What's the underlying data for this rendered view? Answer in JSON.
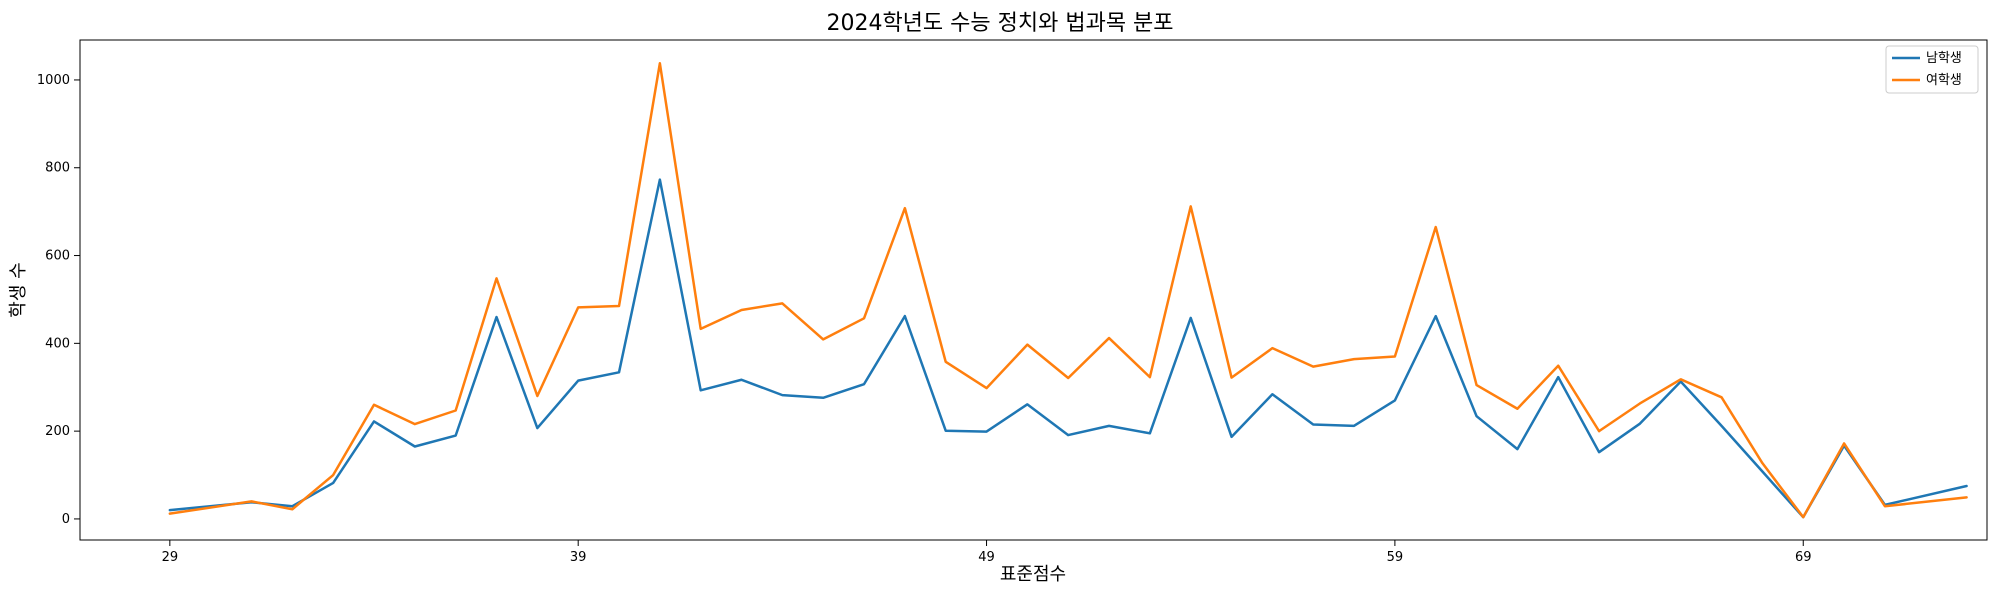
{
  "chart_data": {
    "type": "line",
    "title": "2024학년도 수능 정치와 법과목 분포",
    "xlabel": "표준점수",
    "ylabel": "학생 수",
    "xlim": [
      26.8,
      73.5
    ],
    "ylim": [
      -48,
      1091
    ],
    "x_ticks": [
      29,
      39,
      49,
      59,
      69
    ],
    "y_ticks": [
      0,
      200,
      400,
      600,
      800,
      1000
    ],
    "grid": false,
    "legend_position": "top-right",
    "series": [
      {
        "name": "남학생",
        "color": "#1f77b4",
        "points": [
          [
            29,
            20
          ],
          [
            31,
            38
          ],
          [
            32,
            29
          ],
          [
            33,
            82
          ],
          [
            34,
            222
          ],
          [
            35,
            165
          ],
          [
            36,
            190
          ],
          [
            37,
            460
          ],
          [
            38,
            207
          ],
          [
            39,
            315
          ],
          [
            40,
            334
          ],
          [
            41,
            773
          ],
          [
            42,
            293
          ],
          [
            43,
            317
          ],
          [
            44,
            282
          ],
          [
            45,
            276
          ],
          [
            46,
            307
          ],
          [
            47,
            462
          ],
          [
            48,
            201
          ],
          [
            49,
            199
          ],
          [
            50,
            261
          ],
          [
            51,
            191
          ],
          [
            52,
            212
          ],
          [
            53,
            195
          ],
          [
            54,
            458
          ],
          [
            55,
            187
          ],
          [
            56,
            284
          ],
          [
            57,
            215
          ],
          [
            58,
            212
          ],
          [
            59,
            270
          ],
          [
            60,
            462
          ],
          [
            61,
            234
          ],
          [
            62,
            159
          ],
          [
            63,
            323
          ],
          [
            64,
            152
          ],
          [
            65,
            217
          ],
          [
            66,
            313
          ],
          [
            67,
            212
          ],
          [
            68,
            108
          ],
          [
            69,
            4
          ],
          [
            70,
            167
          ],
          [
            71,
            32
          ],
          [
            73,
            75
          ]
        ]
      },
      {
        "name": "여학생",
        "color": "#ff7f0e",
        "points": [
          [
            29,
            12
          ],
          [
            31,
            40
          ],
          [
            32,
            22
          ],
          [
            33,
            100
          ],
          [
            34,
            260
          ],
          [
            35,
            216
          ],
          [
            36,
            247
          ],
          [
            37,
            548
          ],
          [
            38,
            280
          ],
          [
            39,
            482
          ],
          [
            40,
            485
          ],
          [
            41,
            1038
          ],
          [
            42,
            433
          ],
          [
            43,
            476
          ],
          [
            44,
            491
          ],
          [
            45,
            409
          ],
          [
            46,
            457
          ],
          [
            47,
            708
          ],
          [
            48,
            358
          ],
          [
            49,
            298
          ],
          [
            50,
            397
          ],
          [
            51,
            321
          ],
          [
            52,
            412
          ],
          [
            53,
            323
          ],
          [
            54,
            712
          ],
          [
            55,
            322
          ],
          [
            56,
            389
          ],
          [
            57,
            347
          ],
          [
            58,
            364
          ],
          [
            59,
            370
          ],
          [
            60,
            665
          ],
          [
            61,
            305
          ],
          [
            62,
            251
          ],
          [
            63,
            349
          ],
          [
            64,
            200
          ],
          [
            65,
            263
          ],
          [
            66,
            318
          ],
          [
            67,
            277
          ],
          [
            68,
            127
          ],
          [
            69,
            4
          ],
          [
            70,
            172
          ],
          [
            71,
            29
          ],
          [
            73,
            49
          ]
        ]
      }
    ]
  }
}
